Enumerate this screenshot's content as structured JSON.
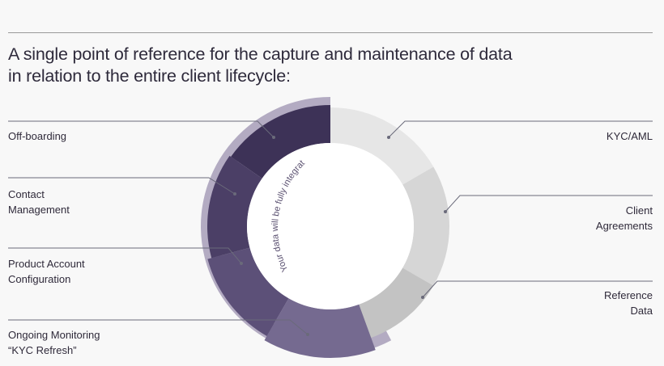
{
  "headline": {
    "line1": "A single point of reference for the capture and maintenance of data",
    "line2": "in relation to the entire client lifecycle:"
  },
  "ring_caption": "Your data will be fully integrated",
  "left_labels": {
    "offboarding": {
      "line1": "Off-boarding"
    },
    "contact": {
      "line1": "Contact",
      "line2": "Management"
    },
    "product": {
      "line1": "Product Account",
      "line2": "Configuration"
    },
    "monitoring": {
      "line1": "Ongoing Monitoring",
      "line2": "“KYC Refresh”"
    }
  },
  "right_labels": {
    "kyc": {
      "line1": "KYC/AML"
    },
    "agreements": {
      "line1": "Client",
      "line2": "Agreements"
    },
    "reference": {
      "line1": "Reference",
      "line2": "Data"
    }
  },
  "colors": {
    "offboarding": "#3d3257",
    "contact": "#4b3f66",
    "product": "#5c5078",
    "monitoring": "#756a90",
    "outer_band": "#b3abc2",
    "kyc": "#e6e6e6",
    "agreements": "#d6d6d6",
    "reference": "#c3c3c3",
    "leader": "#6a6a7a"
  }
}
